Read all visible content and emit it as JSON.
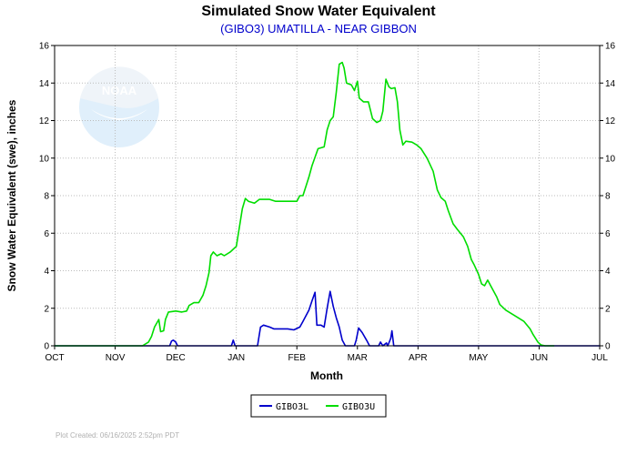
{
  "chart_data": {
    "type": "line",
    "title": "Simulated Snow Water Equivalent",
    "subtitle": "(GIBO3) UMATILLA - NEAR GIBBON",
    "xlabel": "Month",
    "ylabel": "Snow Water Equivalent (swe),  inches",
    "ylim": [
      0,
      16
    ],
    "y_ticks": [
      "0",
      "2",
      "4",
      "6",
      "8",
      "10",
      "12",
      "14",
      "16"
    ],
    "x_unit": "months since Oct 1",
    "xlim": [
      0,
      9
    ],
    "categories": [
      "OCT",
      "NOV",
      "DEC",
      "JAN",
      "FEB",
      "MAR",
      "APR",
      "MAY",
      "JUN",
      "JUL"
    ],
    "grid": true,
    "legend": "bottom-center",
    "logo_text": "NOAA",
    "footer": "Plot Created: 06/16/2025 2:52pm PDT",
    "colors": {
      "GIBO3L": "#0000cc",
      "GIBO3U": "#00dd00",
      "grid": "#bbbbbb"
    },
    "series": [
      {
        "name": "GIBO3L",
        "points": [
          [
            0,
            0
          ],
          [
            1.9,
            0
          ],
          [
            1.93,
            0.25
          ],
          [
            1.96,
            0.3
          ],
          [
            2.0,
            0.2
          ],
          [
            2.03,
            0
          ],
          [
            2.92,
            0
          ],
          [
            2.95,
            0.3
          ],
          [
            2.98,
            0
          ],
          [
            3.35,
            0
          ],
          [
            3.4,
            1.0
          ],
          [
            3.45,
            1.1
          ],
          [
            3.55,
            1.0
          ],
          [
            3.62,
            0.9
          ],
          [
            3.7,
            0.9
          ],
          [
            3.85,
            0.9
          ],
          [
            3.95,
            0.85
          ],
          [
            4.05,
            1.0
          ],
          [
            4.1,
            1.3
          ],
          [
            4.2,
            1.9
          ],
          [
            4.25,
            2.4
          ],
          [
            4.3,
            2.85
          ],
          [
            4.33,
            1.1
          ],
          [
            4.4,
            1.1
          ],
          [
            4.45,
            1.0
          ],
          [
            4.5,
            2.0
          ],
          [
            4.55,
            2.9
          ],
          [
            4.6,
            2.1
          ],
          [
            4.65,
            1.5
          ],
          [
            4.7,
            1.0
          ],
          [
            4.75,
            0.3
          ],
          [
            4.8,
            0
          ],
          [
            4.95,
            0
          ],
          [
            4.98,
            0.3
          ],
          [
            5.02,
            0.95
          ],
          [
            5.08,
            0.7
          ],
          [
            5.15,
            0.3
          ],
          [
            5.2,
            0
          ],
          [
            5.35,
            0
          ],
          [
            5.38,
            0.2
          ],
          [
            5.42,
            0
          ],
          [
            5.48,
            0.15
          ],
          [
            5.5,
            0
          ],
          [
            5.55,
            0.4
          ],
          [
            5.57,
            0.8
          ],
          [
            5.6,
            0
          ],
          [
            9,
            0
          ]
        ]
      },
      {
        "name": "GIBO3U",
        "points": [
          [
            0,
            0
          ],
          [
            1.45,
            0
          ],
          [
            1.55,
            0.2
          ],
          [
            1.6,
            0.5
          ],
          [
            1.65,
            1.0
          ],
          [
            1.72,
            1.4
          ],
          [
            1.75,
            0.75
          ],
          [
            1.8,
            0.8
          ],
          [
            1.83,
            1.4
          ],
          [
            1.88,
            1.8
          ],
          [
            2.0,
            1.85
          ],
          [
            2.1,
            1.8
          ],
          [
            2.18,
            1.85
          ],
          [
            2.22,
            2.15
          ],
          [
            2.3,
            2.3
          ],
          [
            2.38,
            2.3
          ],
          [
            2.45,
            2.7
          ],
          [
            2.5,
            3.2
          ],
          [
            2.55,
            3.9
          ],
          [
            2.58,
            4.8
          ],
          [
            2.62,
            5.0
          ],
          [
            2.68,
            4.8
          ],
          [
            2.75,
            4.9
          ],
          [
            2.8,
            4.8
          ],
          [
            2.9,
            5.0
          ],
          [
            3.0,
            5.3
          ],
          [
            3.05,
            6.3
          ],
          [
            3.1,
            7.3
          ],
          [
            3.15,
            7.85
          ],
          [
            3.2,
            7.7
          ],
          [
            3.3,
            7.6
          ],
          [
            3.38,
            7.8
          ],
          [
            3.55,
            7.8
          ],
          [
            3.65,
            7.7
          ],
          [
            4.0,
            7.7
          ],
          [
            4.05,
            8.0
          ],
          [
            4.1,
            8.0
          ],
          [
            4.15,
            8.5
          ],
          [
            4.2,
            9.0
          ],
          [
            4.25,
            9.6
          ],
          [
            4.35,
            10.5
          ],
          [
            4.45,
            10.6
          ],
          [
            4.5,
            11.5
          ],
          [
            4.55,
            12.0
          ],
          [
            4.6,
            12.2
          ],
          [
            4.65,
            13.5
          ],
          [
            4.7,
            15.0
          ],
          [
            4.75,
            15.1
          ],
          [
            4.78,
            14.8
          ],
          [
            4.82,
            14.0
          ],
          [
            4.9,
            13.9
          ],
          [
            4.95,
            13.6
          ],
          [
            5.0,
            14.1
          ],
          [
            5.03,
            13.2
          ],
          [
            5.1,
            13.0
          ],
          [
            5.18,
            13.0
          ],
          [
            5.25,
            12.1
          ],
          [
            5.32,
            11.9
          ],
          [
            5.38,
            12.0
          ],
          [
            5.42,
            12.5
          ],
          [
            5.47,
            14.2
          ],
          [
            5.52,
            13.8
          ],
          [
            5.56,
            13.7
          ],
          [
            5.62,
            13.75
          ],
          [
            5.66,
            13.0
          ],
          [
            5.7,
            11.5
          ],
          [
            5.75,
            10.7
          ],
          [
            5.8,
            10.9
          ],
          [
            5.9,
            10.85
          ],
          [
            5.98,
            10.7
          ],
          [
            6.05,
            10.5
          ],
          [
            6.15,
            10.0
          ],
          [
            6.25,
            9.3
          ],
          [
            6.32,
            8.3
          ],
          [
            6.38,
            7.9
          ],
          [
            6.45,
            7.7
          ],
          [
            6.5,
            7.2
          ],
          [
            6.58,
            6.5
          ],
          [
            6.65,
            6.2
          ],
          [
            6.75,
            5.8
          ],
          [
            6.82,
            5.3
          ],
          [
            6.88,
            4.6
          ],
          [
            6.93,
            4.3
          ],
          [
            7.0,
            3.8
          ],
          [
            7.05,
            3.3
          ],
          [
            7.1,
            3.2
          ],
          [
            7.15,
            3.5
          ],
          [
            7.2,
            3.2
          ],
          [
            7.3,
            2.6
          ],
          [
            7.35,
            2.2
          ],
          [
            7.45,
            1.9
          ],
          [
            7.55,
            1.7
          ],
          [
            7.65,
            1.5
          ],
          [
            7.75,
            1.3
          ],
          [
            7.85,
            0.9
          ],
          [
            7.9,
            0.6
          ],
          [
            7.98,
            0.2
          ],
          [
            8.03,
            0.05
          ],
          [
            8.1,
            0
          ],
          [
            8.25,
            0
          ]
        ]
      }
    ]
  }
}
